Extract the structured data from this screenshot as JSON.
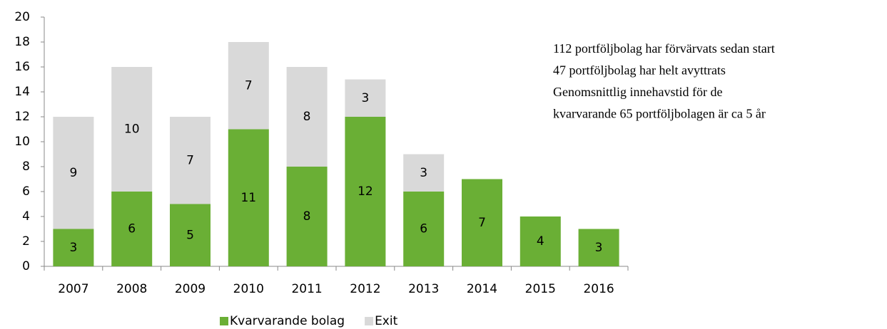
{
  "chart_data": {
    "type": "stacked_bar",
    "categories": [
      "2007",
      "2008",
      "2009",
      "2010",
      "2011",
      "2012",
      "2013",
      "2014",
      "2015",
      "2016"
    ],
    "series": [
      {
        "name": "Kvarvarande bolag",
        "color": "#6aaf35",
        "values": [
          3,
          6,
          5,
          11,
          8,
          12,
          6,
          7,
          4,
          3
        ]
      },
      {
        "name": "Exit",
        "color": "#d9d9d9",
        "values": [
          9,
          10,
          7,
          7,
          8,
          3,
          3,
          null,
          null,
          null
        ]
      }
    ],
    "ylim": [
      0,
      20
    ],
    "yticks": [
      0,
      2,
      4,
      6,
      8,
      10,
      12,
      14,
      16,
      18,
      20
    ],
    "annotations": [
      "112 portföljbolag har förvärvats sedan start",
      "47 portföljbolag har helt avyttrats",
      "Genomsnittlig innehavstid för de",
      "kvarvarande 65 portföljbolagen är ca 5 år"
    ]
  }
}
